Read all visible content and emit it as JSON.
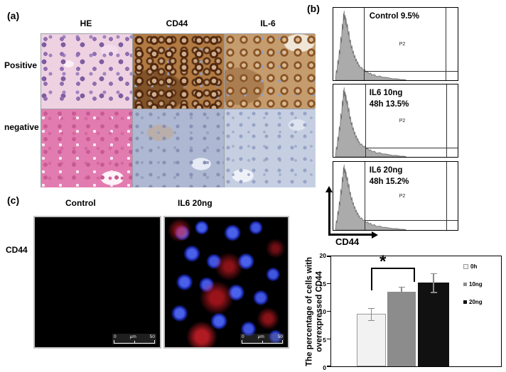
{
  "panel_a": {
    "label": "(a)",
    "col_headers": [
      "HE",
      "CD44",
      "IL-6"
    ],
    "row_labels": [
      "Positive",
      "negative"
    ]
  },
  "panel_b": {
    "label": "(b)",
    "xaxis_label": "CD44",
    "plots": [
      {
        "title_line1": "Control  9.5%",
        "title_line2": "",
        "gate_label": "P2",
        "percent": 9.5
      },
      {
        "title_line1": "IL6 10ng",
        "title_line2": "48h  13.5%",
        "gate_label": "P2",
        "percent": 13.5
      },
      {
        "title_line1": "IL6 20ng",
        "title_line2": "48h 15.2%",
        "gate_label": "P2",
        "percent": 15.2
      }
    ]
  },
  "panel_c": {
    "label": "(c)",
    "col_headers": [
      "Control",
      "IL6 20ng"
    ],
    "row_label": "CD44",
    "scale_bar": {
      "start": "0",
      "unit": "μm",
      "end": "50"
    }
  },
  "chart_data": {
    "type": "bar",
    "categories": [
      "0h",
      "10ng",
      "20ng"
    ],
    "values": [
      9.5,
      13.5,
      15.2
    ],
    "errors": [
      1.1,
      1.0,
      1.7
    ],
    "title": "",
    "xlabel": "",
    "ylabel": "The percentage of cells with overexpressed CD44",
    "ylim": [
      0,
      20
    ],
    "yticks": [
      0,
      5,
      10,
      15,
      20
    ],
    "grid": false,
    "legend": [
      "0h",
      "10ng",
      "20ng"
    ],
    "legend_position": "inside-top-right",
    "bar_colors": [
      "#f2f2f2",
      "#8c8c8c",
      "#111111"
    ],
    "bar_border_colors": [
      "#999999",
      "none",
      "none"
    ],
    "error_bar_color": "#8a8a8a",
    "significance": {
      "symbol": "*",
      "between": [
        "0h",
        "10ng"
      ]
    }
  }
}
